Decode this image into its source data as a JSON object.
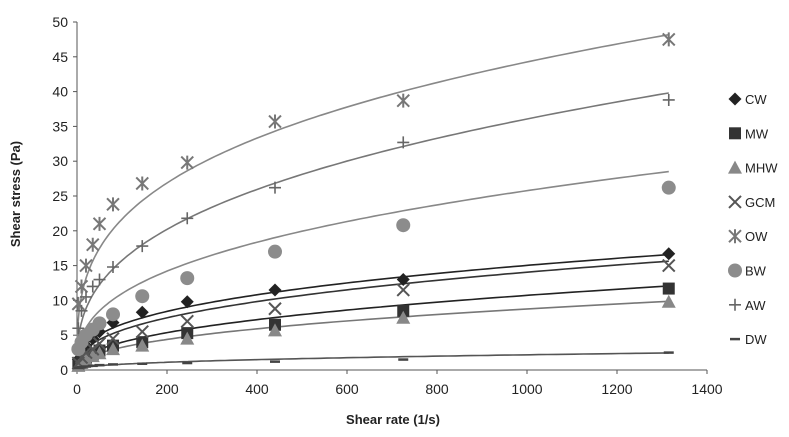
{
  "chart_data": {
    "type": "scatter",
    "title": "",
    "xlabel": "Shear rate (1/s)",
    "ylabel": "Shear stress (Pa)",
    "xlim": [
      0,
      1400
    ],
    "ylim": [
      0,
      50
    ],
    "x_ticks": [
      "0",
      "200",
      "400",
      "600",
      "800",
      "1000",
      "1200",
      "1400"
    ],
    "y_ticks": [
      "0",
      "5",
      "10",
      "15",
      "20",
      "25",
      "30",
      "35",
      "40",
      "45",
      "50"
    ],
    "grid": false,
    "legend_position": "right",
    "x": [
      3,
      10,
      20,
      35,
      50,
      80,
      145,
      245,
      440,
      725,
      1315
    ],
    "series": [
      {
        "name": "CW",
        "marker": "diamond",
        "color": "#222222",
        "values": [
          1.5,
          2.5,
          3.5,
          4.5,
          5.5,
          6.8,
          8.3,
          9.8,
          11.5,
          13.0,
          16.7
        ],
        "fit": {
          "k": 1.25,
          "n": 0.36
        }
      },
      {
        "name": "MW",
        "marker": "square",
        "color": "#333333",
        "values": [
          0.8,
          1.3,
          1.8,
          2.3,
          2.8,
          3.5,
          4.0,
          5.3,
          6.5,
          8.5,
          11.7
        ],
        "fit": {
          "k": 0.55,
          "n": 0.43
        }
      },
      {
        "name": "MHW",
        "marker": "triangle",
        "color": "#888888",
        "values": [
          0.6,
          1.0,
          1.5,
          2.0,
          2.4,
          3.0,
          3.5,
          4.5,
          5.7,
          7.5,
          9.8
        ],
        "fit": {
          "k": 0.45,
          "n": 0.43
        }
      },
      {
        "name": "GCM",
        "marker": "x",
        "color": "#555555",
        "values": [
          1.0,
          1.8,
          2.5,
          3.0,
          3.8,
          4.5,
          5.5,
          7.0,
          8.8,
          11.5,
          15.0
        ],
        "fit": {
          "k": 0.95,
          "n": 0.39
        }
      },
      {
        "name": "OW",
        "marker": "star",
        "color": "#777777",
        "values": [
          9.5,
          12.0,
          15.0,
          18.0,
          21.0,
          23.8,
          26.8,
          29.8,
          35.7,
          38.7,
          47.5
        ],
        "fit": {
          "k": 5.2,
          "n": 0.31
        }
      },
      {
        "name": "BW",
        "marker": "circle",
        "color": "#8c8c8c",
        "values": [
          3.0,
          4.0,
          5.0,
          5.8,
          6.7,
          8.0,
          10.6,
          13.2,
          17.0,
          20.8,
          26.2
        ],
        "fit": {
          "k": 2.0,
          "n": 0.37
        }
      },
      {
        "name": "AW",
        "marker": "plus",
        "color": "#666666",
        "values": [
          6.0,
          8.5,
          10.5,
          12.0,
          13.0,
          14.8,
          17.8,
          21.8,
          26.2,
          32.7,
          38.8
        ],
        "fit": {
          "k": 3.0,
          "n": 0.36
        }
      },
      {
        "name": "DW",
        "marker": "dash",
        "color": "#444444",
        "values": [
          0.3,
          0.4,
          0.5,
          0.6,
          0.7,
          0.8,
          0.9,
          1.0,
          1.2,
          1.5,
          2.5
        ],
        "fit": {
          "k": 0.12,
          "n": 0.42
        }
      }
    ]
  }
}
